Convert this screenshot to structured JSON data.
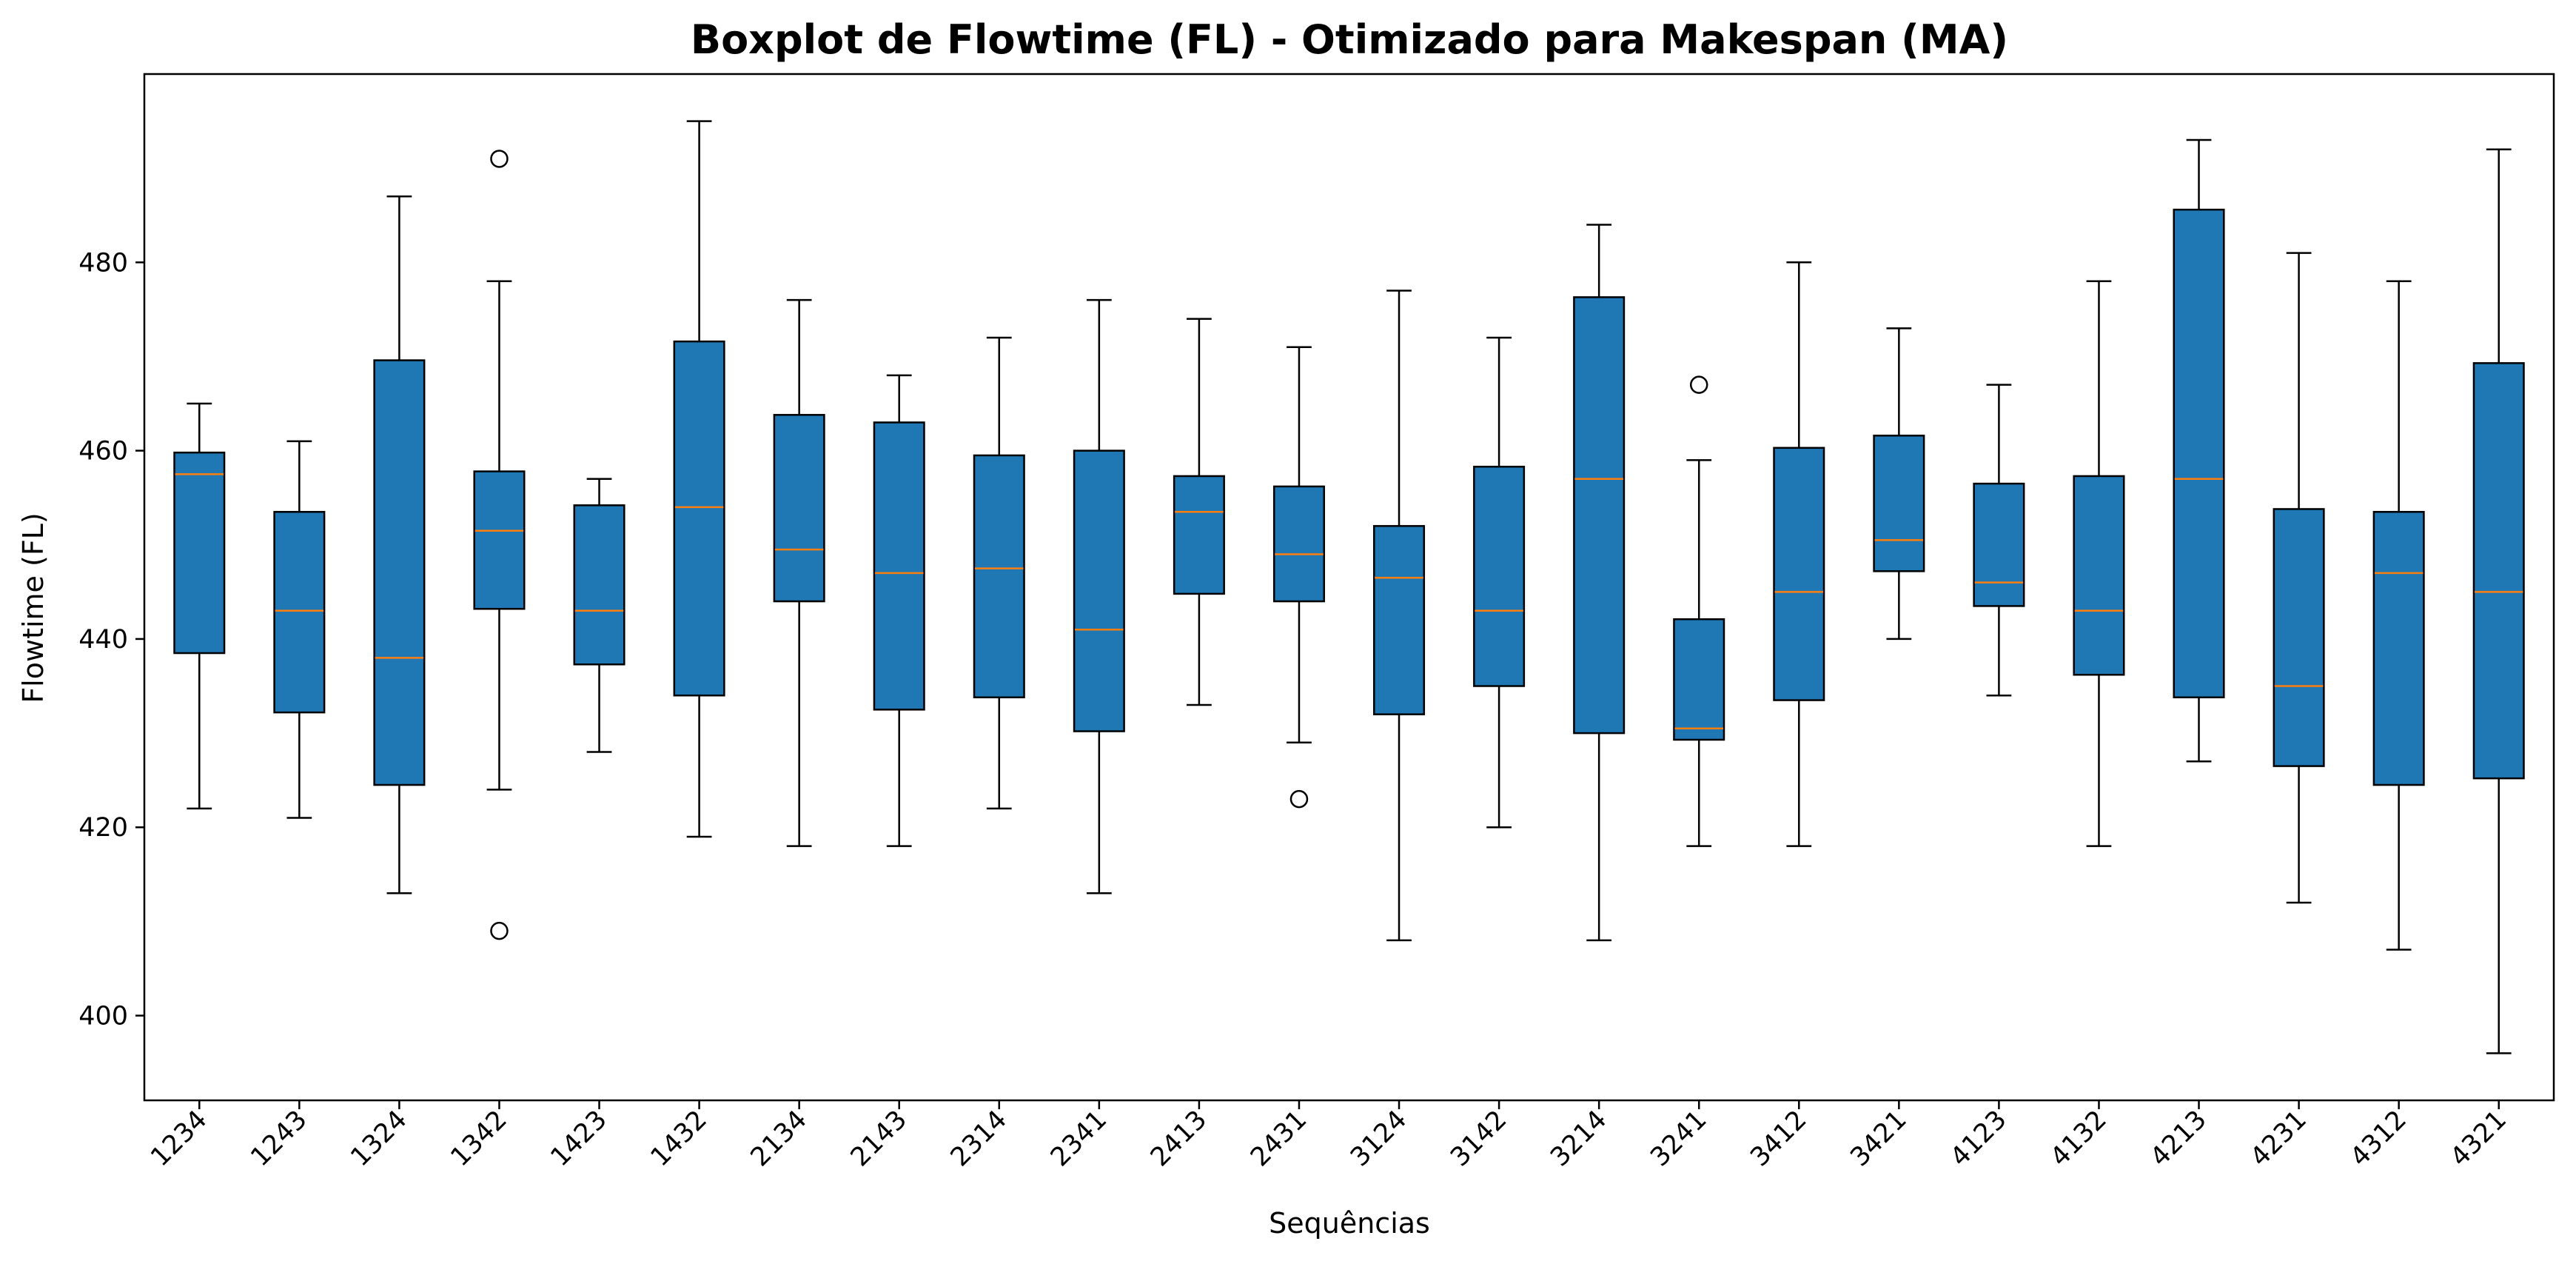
{
  "chart_data": {
    "type": "boxplot",
    "title": "Boxplot de Flowtime (FL) - Otimizado para Makespan (MA)",
    "xlabel": "Sequências",
    "ylabel": "Flowtime (FL)",
    "ylim": [
      391,
      500
    ],
    "yticks": [
      400,
      420,
      440,
      460,
      480
    ],
    "grid": false,
    "colors": {
      "box_fill": "#1f77b4",
      "median": "#ff7f0e",
      "edge": "#000000"
    },
    "categories": [
      "1234",
      "1243",
      "1324",
      "1342",
      "1423",
      "1432",
      "2134",
      "2143",
      "2314",
      "2341",
      "2413",
      "2431",
      "3124",
      "3142",
      "3214",
      "3241",
      "3412",
      "3421",
      "4123",
      "4132",
      "4213",
      "4231",
      "4312",
      "4321"
    ],
    "boxes": [
      {
        "whislo": 422,
        "q1": 438.5,
        "med": 457.5,
        "q3": 459.8,
        "whishi": 465,
        "fliers": []
      },
      {
        "whislo": 421,
        "q1": 432.2,
        "med": 443,
        "q3": 453.5,
        "whishi": 461,
        "fliers": []
      },
      {
        "whislo": 413,
        "q1": 424.5,
        "med": 438,
        "q3": 469.6,
        "whishi": 487,
        "fliers": []
      },
      {
        "whislo": 424,
        "q1": 443.2,
        "med": 451.5,
        "q3": 457.8,
        "whishi": 478,
        "fliers": [
          409,
          491
        ]
      },
      {
        "whislo": 428,
        "q1": 437.3,
        "med": 443,
        "q3": 454.2,
        "whishi": 457,
        "fliers": []
      },
      {
        "whislo": 419,
        "q1": 434,
        "med": 454,
        "q3": 471.6,
        "whishi": 495,
        "fliers": []
      },
      {
        "whislo": 418,
        "q1": 444,
        "med": 449.5,
        "q3": 463.8,
        "whishi": 476,
        "fliers": []
      },
      {
        "whislo": 418,
        "q1": 432.5,
        "med": 447,
        "q3": 463,
        "whishi": 468,
        "fliers": []
      },
      {
        "whislo": 422,
        "q1": 433.8,
        "med": 447.5,
        "q3": 459.5,
        "whishi": 472,
        "fliers": []
      },
      {
        "whislo": 413,
        "q1": 430.2,
        "med": 441,
        "q3": 460,
        "whishi": 476,
        "fliers": []
      },
      {
        "whislo": 433,
        "q1": 444.8,
        "med": 453.5,
        "q3": 457.3,
        "whishi": 474,
        "fliers": []
      },
      {
        "whislo": 429,
        "q1": 444,
        "med": 449,
        "q3": 456.2,
        "whishi": 471,
        "fliers": [
          423
        ]
      },
      {
        "whislo": 408,
        "q1": 432,
        "med": 446.5,
        "q3": 452,
        "whishi": 477,
        "fliers": []
      },
      {
        "whislo": 420,
        "q1": 435,
        "med": 443,
        "q3": 458.3,
        "whishi": 472,
        "fliers": []
      },
      {
        "whislo": 408,
        "q1": 430,
        "med": 457,
        "q3": 476.3,
        "whishi": 484,
        "fliers": []
      },
      {
        "whislo": 418,
        "q1": 429.3,
        "med": 430.5,
        "q3": 442.1,
        "whishi": 459,
        "fliers": [
          467
        ]
      },
      {
        "whislo": 418,
        "q1": 433.5,
        "med": 445,
        "q3": 460.3,
        "whishi": 480,
        "fliers": []
      },
      {
        "whislo": 440,
        "q1": 447.2,
        "med": 450.5,
        "q3": 461.6,
        "whishi": 473,
        "fliers": []
      },
      {
        "whislo": 434,
        "q1": 443.5,
        "med": 446,
        "q3": 456.5,
        "whishi": 467,
        "fliers": []
      },
      {
        "whislo": 418,
        "q1": 436.2,
        "med": 443,
        "q3": 457.3,
        "whishi": 478,
        "fliers": []
      },
      {
        "whislo": 427,
        "q1": 433.8,
        "med": 457,
        "q3": 485.6,
        "whishi": 493,
        "fliers": []
      },
      {
        "whislo": 412,
        "q1": 426.5,
        "med": 435,
        "q3": 453.8,
        "whishi": 481,
        "fliers": []
      },
      {
        "whislo": 407,
        "q1": 424.5,
        "med": 447,
        "q3": 453.5,
        "whishi": 478,
        "fliers": []
      },
      {
        "whislo": 396,
        "q1": 425.2,
        "med": 445,
        "q3": 469.3,
        "whishi": 492,
        "fliers": []
      }
    ]
  }
}
